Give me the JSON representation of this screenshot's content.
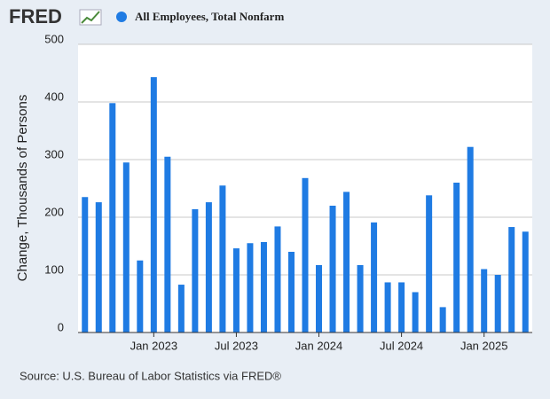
{
  "logo": "FRED",
  "chart_data": {
    "type": "bar",
    "legend": "All Employees, Total Nonfarm",
    "ylabel": "Change, Thousands of Persons",
    "source": "Source: U.S. Bureau of Labor Statistics via FRED®",
    "x": [
      "2022-08",
      "2022-09",
      "2022-10",
      "2022-11",
      "2022-12",
      "2023-01",
      "2023-02",
      "2023-03",
      "2023-04",
      "2023-05",
      "2023-06",
      "2023-07",
      "2023-08",
      "2023-09",
      "2023-10",
      "2023-11",
      "2023-12",
      "2024-01",
      "2024-02",
      "2024-03",
      "2024-04",
      "2024-05",
      "2024-06",
      "2024-07",
      "2024-08",
      "2024-09",
      "2024-10",
      "2024-11",
      "2024-12",
      "2025-01",
      "2025-02",
      "2025-03",
      "2025-04"
    ],
    "series": [
      {
        "name": "All Employees, Total Nonfarm",
        "color": "#1f7be3",
        "values": [
          235,
          226,
          398,
          295,
          125,
          443,
          305,
          83,
          214,
          226,
          255,
          146,
          155,
          157,
          184,
          140,
          268,
          117,
          220,
          244,
          117,
          191,
          87,
          87,
          70,
          238,
          44,
          260,
          322,
          110,
          100,
          183,
          175
        ]
      }
    ],
    "xticks": [
      {
        "value": "2023-01",
        "label": "Jan 2023"
      },
      {
        "value": "2023-07",
        "label": "Jul 2023"
      },
      {
        "value": "2024-01",
        "label": "Jan 2024"
      },
      {
        "value": "2024-07",
        "label": "Jul 2024"
      },
      {
        "value": "2025-01",
        "label": "Jan 2025"
      }
    ],
    "ylim": [
      0,
      500
    ],
    "yticks": [
      0,
      100,
      200,
      300,
      400,
      500
    ],
    "grid": true
  }
}
